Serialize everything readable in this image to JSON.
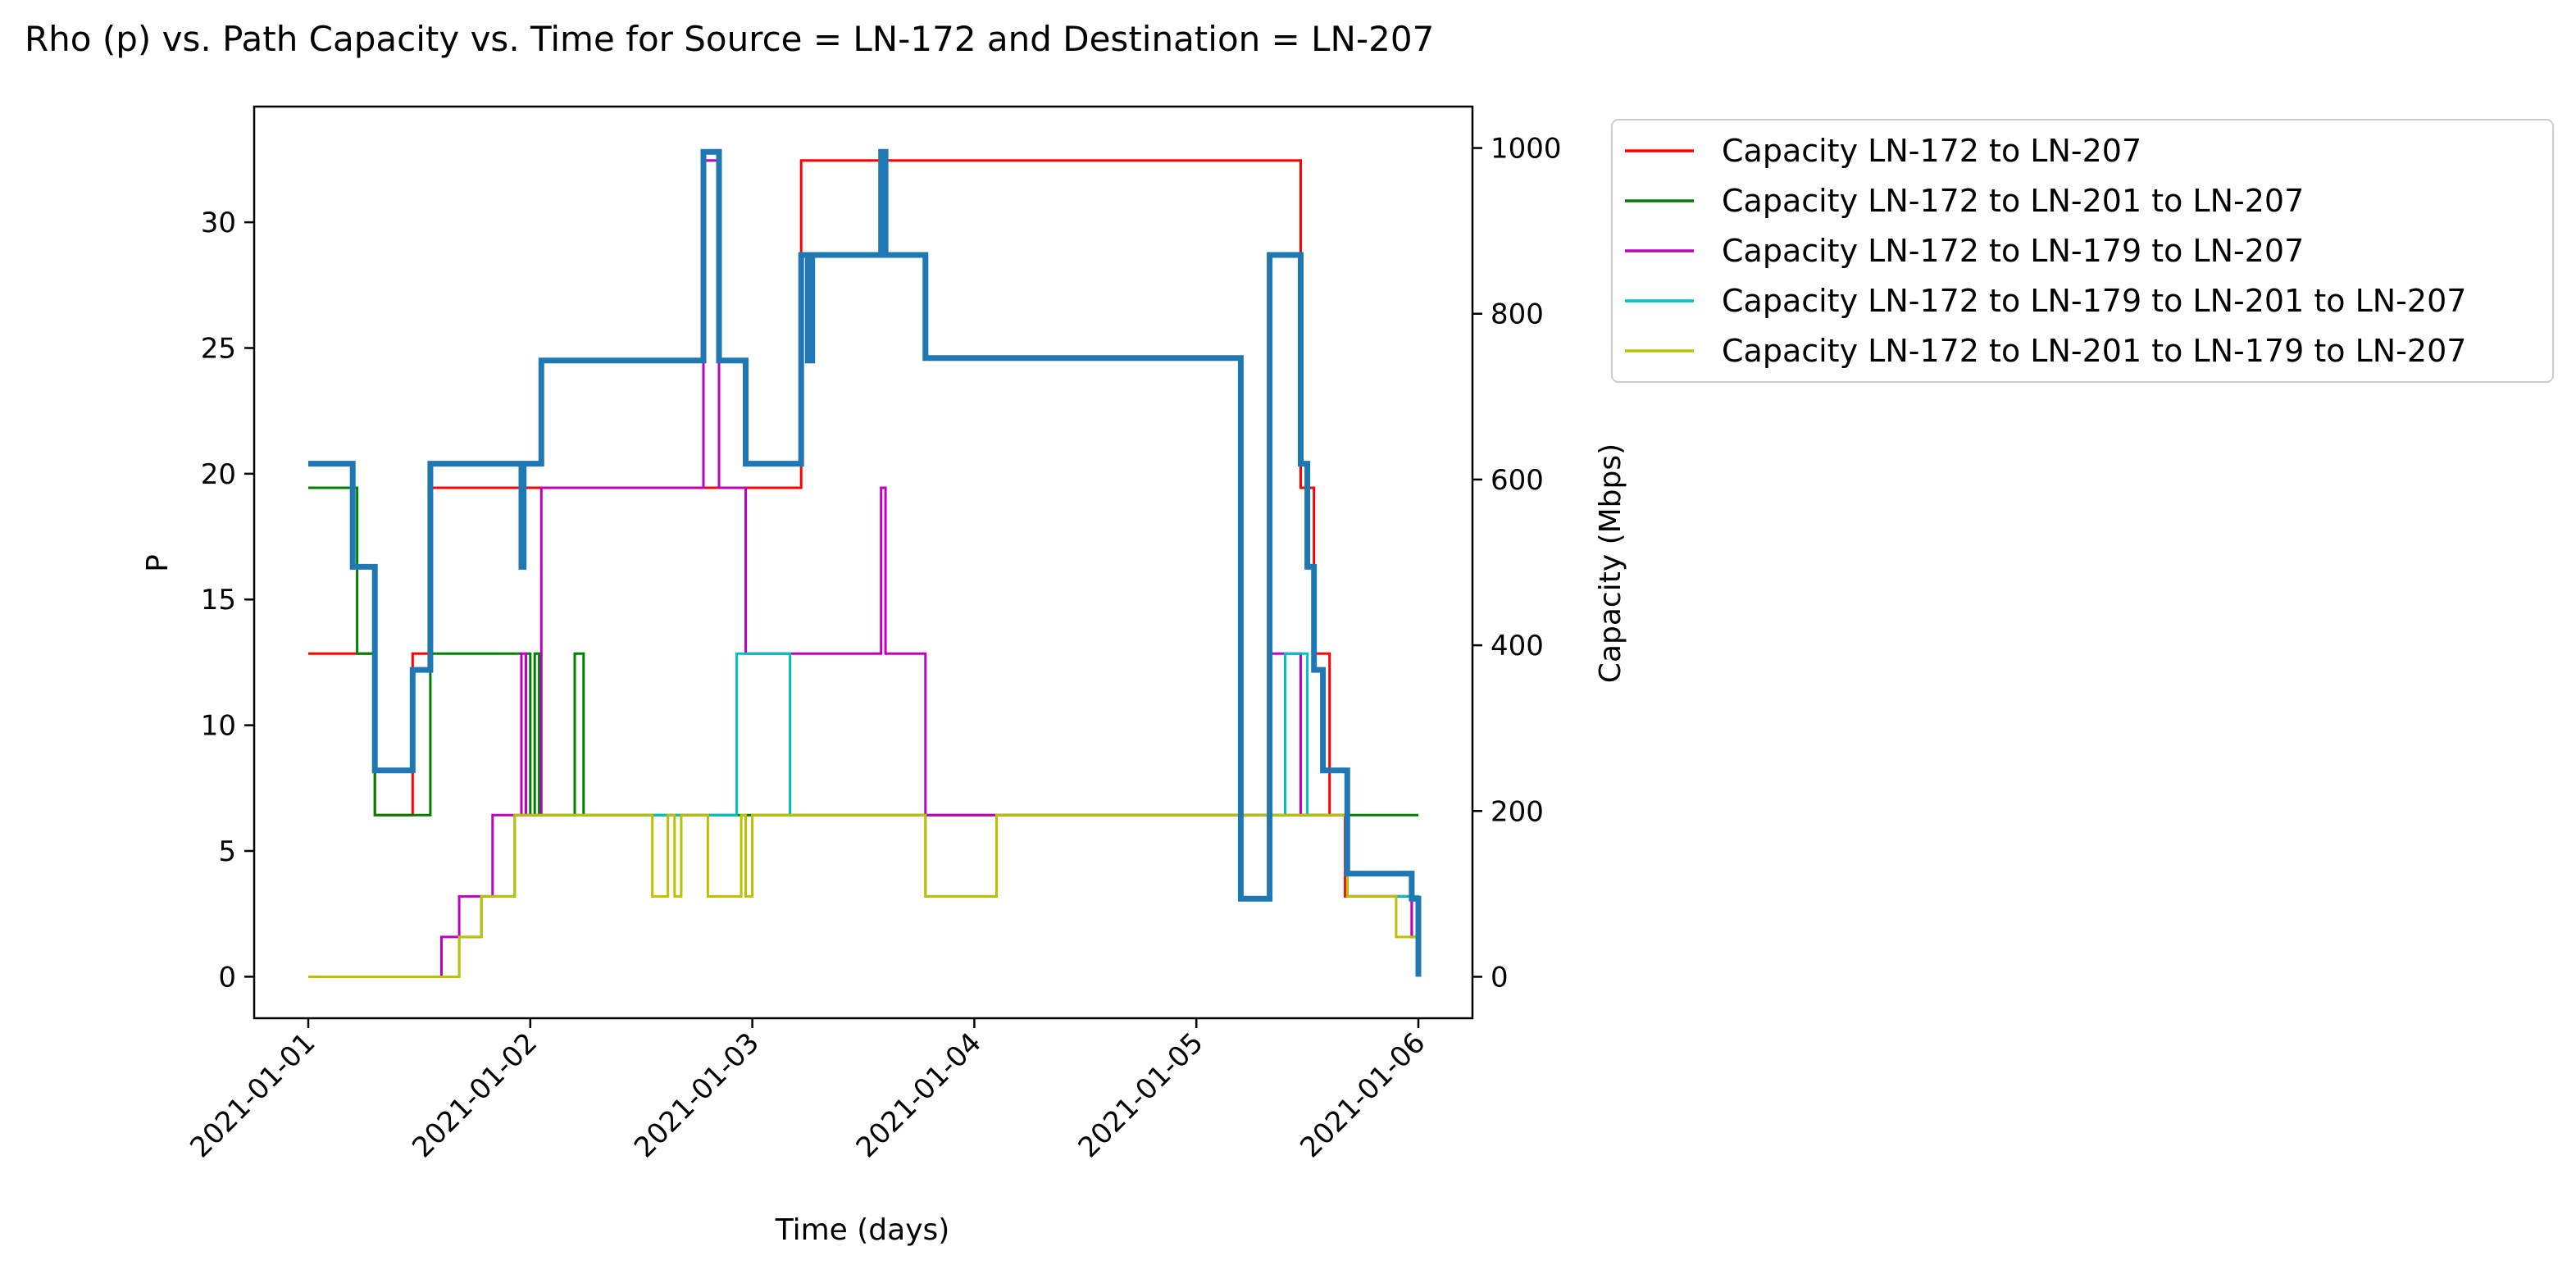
{
  "chart_data": {
    "type": "line",
    "title": "Rho (p) vs. Path Capacity vs. Time for Source = LN-172 and Destination = LN-207",
    "xlabel": "Time (days)",
    "ylabel_left": "P",
    "ylabel_right": "Capacity (Mbps)",
    "x_ticks": [
      "2021-01-01",
      "2021-01-02",
      "2021-01-03",
      "2021-01-04",
      "2021-01-05",
      "2021-01-06"
    ],
    "y_left_ticks": [
      0,
      5,
      10,
      15,
      20,
      25,
      30
    ],
    "y_right_ticks": [
      0,
      200,
      400,
      600,
      800,
      1000
    ],
    "x_range_days": [
      0,
      5
    ],
    "ylim_left": [
      -1.65,
      34.6
    ],
    "ylim_right": [
      -50,
      1050
    ],
    "legend_position": "outside-top-right",
    "grid": false,
    "rho": {
      "color": "#1f77b4",
      "axis": "left",
      "steps": [
        [
          0.0,
          20.4
        ],
        [
          0.2,
          16.3
        ],
        [
          0.3,
          8.2
        ],
        [
          0.47,
          12.2
        ],
        [
          0.55,
          20.4
        ],
        [
          0.96,
          16.3
        ],
        [
          0.97,
          20.4
        ],
        [
          1.05,
          24.5
        ],
        [
          1.78,
          32.8
        ],
        [
          1.85,
          24.5
        ],
        [
          1.97,
          20.4
        ],
        [
          2.22,
          28.7
        ],
        [
          2.25,
          24.5
        ],
        [
          2.27,
          28.7
        ],
        [
          2.58,
          32.8
        ],
        [
          2.6,
          28.7
        ],
        [
          2.78,
          24.6
        ],
        [
          4.33,
          28.7
        ],
        [
          4.47,
          20.4
        ],
        [
          4.5,
          16.3
        ],
        [
          4.53,
          12.2
        ],
        [
          4.57,
          8.2
        ],
        [
          4.68,
          4.1
        ],
        [
          4.97,
          3.1
        ],
        [
          4.2,
          3.1
        ],
        [
          5.18,
          2.1
        ],
        [
          5.21,
          1.0
        ],
        [
          5.27,
          0.0
        ],
        [
          6.0,
          0.0
        ]
      ]
    },
    "series": [
      {
        "name": "Capacity LN-172 to LN-207",
        "color": "#ff0000",
        "axis": "right",
        "steps": [
          [
            0.0,
            390
          ],
          [
            0.3,
            195
          ],
          [
            0.47,
            390
          ],
          [
            0.55,
            590
          ],
          [
            2.22,
            985
          ],
          [
            4.47,
            590
          ],
          [
            4.53,
            390
          ],
          [
            4.6,
            195
          ],
          [
            4.67,
            97
          ],
          [
            4.97,
            48
          ],
          [
            5.15,
            0
          ],
          [
            6.0,
            0
          ]
        ]
      },
      {
        "name": "Capacity LN-172 to LN-201 to LN-207",
        "color": "#008000",
        "axis": "right",
        "steps": [
          [
            0.0,
            590
          ],
          [
            0.22,
            390
          ],
          [
            0.3,
            195
          ],
          [
            0.55,
            390
          ],
          [
            0.96,
            195
          ],
          [
            0.98,
            390
          ],
          [
            1.0,
            195
          ],
          [
            1.02,
            390
          ],
          [
            1.04,
            195
          ],
          [
            1.2,
            390
          ],
          [
            1.24,
            195
          ],
          [
            2.0,
            195
          ],
          [
            6.0,
            195
          ]
        ]
      },
      {
        "name": "Capacity LN-172 to LN-179 to LN-207",
        "color": "#bf00bf",
        "axis": "right",
        "steps": [
          [
            0.0,
            0
          ],
          [
            0.6,
            48
          ],
          [
            0.68,
            97
          ],
          [
            0.83,
            195
          ],
          [
            0.96,
            390
          ],
          [
            0.98,
            195
          ],
          [
            1.05,
            590
          ],
          [
            1.78,
            985
          ],
          [
            1.85,
            590
          ],
          [
            1.97,
            390
          ],
          [
            2.58,
            590
          ],
          [
            2.6,
            390
          ],
          [
            2.78,
            195
          ],
          [
            4.33,
            390
          ],
          [
            4.47,
            195
          ],
          [
            4.68,
            97
          ],
          [
            4.97,
            48
          ],
          [
            5.15,
            0
          ],
          [
            6.0,
            0
          ]
        ]
      },
      {
        "name": "Capacity LN-172 to LN-179 to LN-201 to LN-207",
        "color": "#00bfbf",
        "axis": "right",
        "steps": [
          [
            0.0,
            0
          ],
          [
            0.68,
            48
          ],
          [
            0.78,
            97
          ],
          [
            0.93,
            195
          ],
          [
            1.93,
            390
          ],
          [
            2.17,
            195
          ],
          [
            2.78,
            97
          ],
          [
            3.1,
            195
          ],
          [
            4.4,
            390
          ],
          [
            4.5,
            195
          ],
          [
            4.68,
            97
          ],
          [
            4.97,
            97
          ],
          [
            5.22,
            48
          ],
          [
            5.27,
            0
          ],
          [
            6.0,
            0
          ]
        ]
      },
      {
        "name": "Capacity LN-172 to LN-201 to LN-179 to LN-207",
        "color": "#bfbf00",
        "axis": "right",
        "steps": [
          [
            0.0,
            0
          ],
          [
            0.68,
            48
          ],
          [
            0.78,
            97
          ],
          [
            0.93,
            195
          ],
          [
            1.55,
            97
          ],
          [
            1.62,
            195
          ],
          [
            1.65,
            97
          ],
          [
            1.68,
            195
          ],
          [
            1.8,
            97
          ],
          [
            1.95,
            195
          ],
          [
            1.97,
            97
          ],
          [
            2.0,
            195
          ],
          [
            2.78,
            97
          ],
          [
            3.1,
            195
          ],
          [
            4.68,
            97
          ],
          [
            4.9,
            48
          ],
          [
            5.03,
            0
          ],
          [
            6.0,
            0
          ]
        ]
      }
    ]
  }
}
